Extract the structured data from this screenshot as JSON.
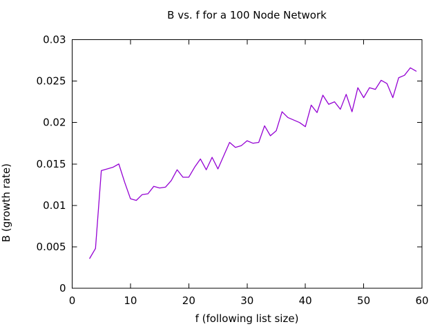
{
  "chart_data": {
    "type": "line",
    "title": "B vs. f for a 100 Node Network",
    "xlabel": "f (following list size)",
    "ylabel": "B (growth rate)",
    "xlim": [
      0,
      60
    ],
    "ylim": [
      0,
      0.03
    ],
    "xticks": {
      "values": [
        0,
        10,
        20,
        30,
        40,
        50,
        60
      ],
      "labels": [
        "0",
        "10",
        "20",
        "30",
        "40",
        "50",
        "60"
      ]
    },
    "yticks": {
      "values": [
        0,
        0.005,
        0.01,
        0.015,
        0.02,
        0.025,
        0.03
      ],
      "labels": [
        "0",
        "0.005",
        "0.01",
        "0.015",
        "0.02",
        "0.025",
        "0.03"
      ]
    },
    "grid": false,
    "legend_position": "none",
    "line_color": "#9400d3",
    "background_color": "#ffffff",
    "border_color": "#000000",
    "series": [
      {
        "name": "B",
        "x": [
          3,
          4,
          5,
          6,
          7,
          8,
          9,
          10,
          11,
          12,
          13,
          14,
          15,
          16,
          17,
          18,
          19,
          20,
          21,
          22,
          23,
          24,
          25,
          26,
          27,
          28,
          29,
          30,
          31,
          32,
          33,
          34,
          35,
          36,
          37,
          38,
          39,
          40,
          41,
          42,
          43,
          44,
          45,
          46,
          47,
          48,
          49,
          50,
          51,
          52,
          53,
          54,
          55,
          56,
          57,
          58,
          59
        ],
        "y": [
          0.0036,
          0.0048,
          0.0142,
          0.0144,
          0.0146,
          0.015,
          0.0128,
          0.0108,
          0.0106,
          0.0113,
          0.0114,
          0.0123,
          0.0121,
          0.0122,
          0.013,
          0.0143,
          0.0134,
          0.0134,
          0.0146,
          0.0156,
          0.0143,
          0.0158,
          0.0144,
          0.016,
          0.0176,
          0.017,
          0.0172,
          0.0178,
          0.0175,
          0.0176,
          0.0196,
          0.0184,
          0.019,
          0.0213,
          0.0206,
          0.0203,
          0.02,
          0.0195,
          0.0221,
          0.0212,
          0.0233,
          0.0222,
          0.0225,
          0.0216,
          0.0234,
          0.0213,
          0.0242,
          0.023,
          0.0242,
          0.024,
          0.0251,
          0.0247,
          0.023,
          0.0254,
          0.0257,
          0.0266,
          0.0262
        ]
      }
    ]
  }
}
